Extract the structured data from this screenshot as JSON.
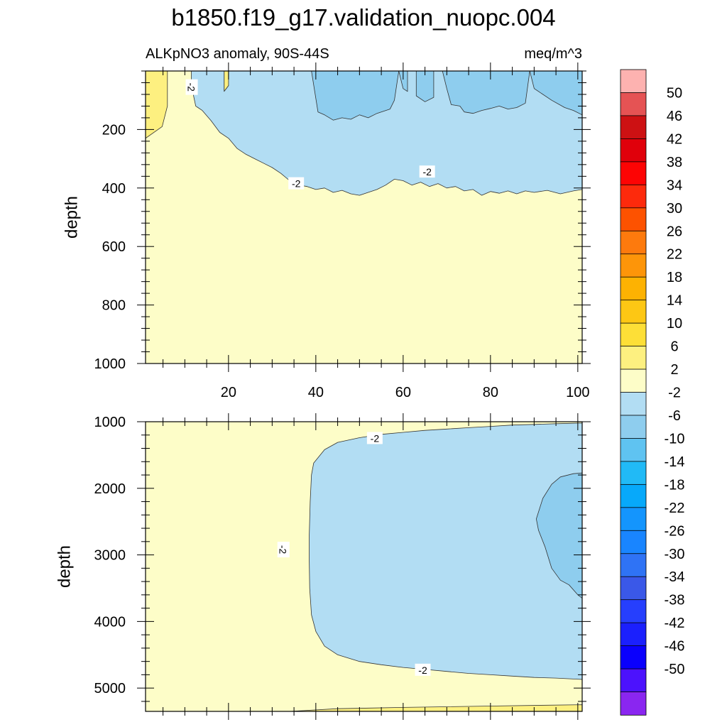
{
  "chart_data": {
    "type": "contour",
    "title": "b1850.f19_g17.validation_nuopc.004",
    "subtitle_left": "ALKpNO3 anomaly, 90S-44S",
    "subtitle_right": "meq/m^3",
    "x_range": [
      1,
      101
    ],
    "x_ticks": [
      20,
      40,
      60,
      80,
      100
    ],
    "x_tick_labels": [
      "20",
      "40",
      "60",
      "80",
      "100"
    ],
    "panels": [
      {
        "name": "upper",
        "ylabel": "depth",
        "ylim": [
          0,
          1000
        ],
        "y_ticks": [
          200,
          400,
          600,
          800,
          1000
        ],
        "y_tick_labels": [
          "200",
          "400",
          "600",
          "800",
          "1000"
        ],
        "contour_labels": [
          {
            "text": "-2",
            "x": 11.5,
            "y": 55,
            "rotate": 90
          },
          {
            "text": "-2",
            "x": 35.5,
            "y": 385,
            "rotate": 0
          },
          {
            "text": "-2",
            "x": 65.5,
            "y": 345,
            "rotate": 0
          }
        ]
      },
      {
        "name": "lower",
        "ylabel": "depth",
        "ylim": [
          1000,
          5350
        ],
        "y_ticks": [
          1000,
          2000,
          3000,
          4000,
          5000
        ],
        "y_tick_labels": [
          "1000",
          "2000",
          "3000",
          "4000",
          "5000"
        ],
        "contour_labels": [
          {
            "text": "-2",
            "x": 53.5,
            "y": 1250,
            "rotate": 0
          },
          {
            "text": "-2",
            "x": 32.5,
            "y": 2920,
            "rotate": 90
          },
          {
            "text": "-2",
            "x": 64.5,
            "y": 4730,
            "rotate": 0
          }
        ]
      }
    ],
    "fields": {
      "upper": [
        {
          "level": "2 to 6",
          "points": [
            [
              1,
              0
            ],
            [
              6,
              0
            ],
            [
              6,
              120
            ],
            [
              4.8,
              190
            ],
            [
              1,
              230
            ]
          ]
        },
        {
          "level": "2 to 6",
          "points": [
            [
              19,
              0
            ],
            [
              20,
              0
            ],
            [
              20,
              50
            ],
            [
              19,
              70
            ]
          ]
        },
        {
          "level": "-6 to -2",
          "points": [
            [
              20,
              0
            ],
            [
              101,
              0
            ],
            [
              101,
              405
            ],
            [
              99,
              410
            ],
            [
              96,
              420
            ],
            [
              93,
              408
            ],
            [
              90,
              415
            ],
            [
              88,
              410
            ],
            [
              86,
              420
            ],
            [
              84,
              410
            ],
            [
              82,
              418
            ],
            [
              80,
              412
            ],
            [
              78,
              425
            ],
            [
              76,
              405
            ],
            [
              74,
              410
            ],
            [
              72,
              395
            ],
            [
              70,
              400
            ],
            [
              68,
              385
            ],
            [
              66,
              395
            ],
            [
              64,
              380
            ],
            [
              62,
              390
            ],
            [
              60,
              375
            ],
            [
              58,
              370
            ],
            [
              56,
              390
            ],
            [
              54,
              405
            ],
            [
              52,
              415
            ],
            [
              50,
              425
            ],
            [
              48,
              420
            ],
            [
              46,
              408
            ],
            [
              44,
              415
            ],
            [
              42,
              400
            ],
            [
              40,
              405
            ],
            [
              38,
              395
            ],
            [
              36,
              390
            ],
            [
              34,
              375
            ],
            [
              32,
              350
            ],
            [
              30,
              330
            ],
            [
              28,
              315
            ],
            [
              26,
              300
            ],
            [
              24,
              285
            ],
            [
              22,
              265
            ],
            [
              20,
              230
            ],
            [
              18,
              210
            ],
            [
              16,
              170
            ],
            [
              14,
              135
            ],
            [
              13,
              125
            ],
            [
              12.5,
              120
            ],
            [
              11.5,
              50
            ],
            [
              11.5,
              0
            ],
            [
              16,
              0
            ],
            [
              19,
              0
            ],
            [
              19,
              70
            ],
            [
              20,
              50
            ]
          ]
        },
        {
          "level": "-10 to -6",
          "points": [
            [
              39,
              0
            ],
            [
              59,
              0
            ],
            [
              58,
              100
            ],
            [
              57,
              130
            ],
            [
              54,
              145
            ],
            [
              52,
              160
            ],
            [
              50,
              150
            ],
            [
              48,
              165
            ],
            [
              46,
              160
            ],
            [
              44,
              168
            ],
            [
              42,
              150
            ],
            [
              40.5,
              140
            ]
          ]
        },
        {
          "level": "-10 to -6",
          "points": [
            [
              59,
              0
            ],
            [
              61,
              0
            ],
            [
              61,
              70
            ],
            [
              60,
              60
            ]
          ]
        },
        {
          "level": "-10 to -6",
          "points": [
            [
              63,
              0
            ],
            [
              67,
              0
            ],
            [
              67,
              90
            ],
            [
              65,
              105
            ],
            [
              63,
              85
            ]
          ]
        },
        {
          "level": "-10 to -6",
          "points": [
            [
              69,
              0
            ],
            [
              89,
              0
            ],
            [
              90,
              60
            ],
            [
              94,
              100
            ],
            [
              97,
              125
            ],
            [
              99,
              135
            ],
            [
              101,
              150
            ],
            [
              101,
              0
            ],
            [
              89,
              0
            ],
            [
              88,
              110
            ],
            [
              86,
              125
            ],
            [
              84,
              130
            ],
            [
              82,
              120
            ],
            [
              80,
              128
            ],
            [
              78,
              135
            ],
            [
              76,
              145
            ],
            [
              74,
              140
            ],
            [
              73,
              120
            ],
            [
              71,
              115
            ],
            [
              70,
              60
            ]
          ]
        }
      ],
      "lower": [
        {
          "level": "2 to 6",
          "points": [
            [
              34,
              5350
            ],
            [
              45,
              5310
            ],
            [
              60,
              5290
            ],
            [
              80,
              5270
            ],
            [
              101,
              5250
            ],
            [
              101,
              5350
            ]
          ]
        },
        {
          "level": "-6 to -2",
          "points": [
            [
              101,
              1020
            ],
            [
              95,
              1030
            ],
            [
              90,
              1040
            ],
            [
              85,
              1050
            ],
            [
              80,
              1070
            ],
            [
              75,
              1090
            ],
            [
              70,
              1110
            ],
            [
              65,
              1130
            ],
            [
              60,
              1160
            ],
            [
              55,
              1190
            ],
            [
              50,
              1240
            ],
            [
              45,
              1310
            ],
            [
              42,
              1420
            ],
            [
              39.5,
              1620
            ],
            [
              39,
              1800
            ],
            [
              38.7,
              2200
            ],
            [
              38.5,
              2700
            ],
            [
              38.5,
              3100
            ],
            [
              38.6,
              3500
            ],
            [
              39,
              3900
            ],
            [
              40,
              4150
            ],
            [
              42,
              4370
            ],
            [
              45,
              4500
            ],
            [
              50,
              4600
            ],
            [
              55,
              4650
            ],
            [
              60,
              4690
            ],
            [
              65,
              4720
            ],
            [
              70,
              4750
            ],
            [
              75,
              4780
            ],
            [
              80,
              4800
            ],
            [
              85,
              4820
            ],
            [
              90,
              4840
            ],
            [
              95,
              4850
            ],
            [
              101,
              4870
            ]
          ]
        },
        {
          "level": "-10 to -6",
          "points": [
            [
              101,
              1770
            ],
            [
              99,
              1780
            ],
            [
              96,
              1830
            ],
            [
              94,
              1940
            ],
            [
              92,
              2150
            ],
            [
              90.5,
              2460
            ],
            [
              91,
              2630
            ],
            [
              92.5,
              2880
            ],
            [
              94,
              3200
            ],
            [
              96,
              3380
            ],
            [
              98,
              3450
            ],
            [
              100,
              3600
            ],
            [
              101,
              3650
            ]
          ]
        }
      ]
    },
    "colorbar": {
      "labels": [
        "50",
        "46",
        "42",
        "38",
        "34",
        "30",
        "26",
        "22",
        "18",
        "14",
        "10",
        "6",
        "2",
        "-2",
        "-6",
        "-10",
        "-14",
        "-18",
        "-22",
        "-26",
        "-30",
        "-34",
        "-38",
        "-42",
        "-46",
        "-50"
      ],
      "colors": [
        "#fdb2b0",
        "#e55354",
        "#cd1113",
        "#e0000b",
        "#fd0404",
        "#fd2a0c",
        "#fd5200",
        "#fd7a0d",
        "#fd9509",
        "#fdb202",
        "#fdc714",
        "#fddf37",
        "#fdf080",
        "#fdfdc8",
        "#b2ddf3",
        "#8ecdee",
        "#5fc3f1",
        "#21baf6",
        "#07a9fa",
        "#1495fd",
        "#1985ff",
        "#2f73f5",
        "#3a58e8",
        "#263ffd",
        "#1b20fd",
        "#0a00fd",
        "#4c12fd",
        "#8a26f0"
      ]
    },
    "colors": {
      "bg_level": "#fdfdc8",
      "contour_line": "#333333"
    }
  }
}
